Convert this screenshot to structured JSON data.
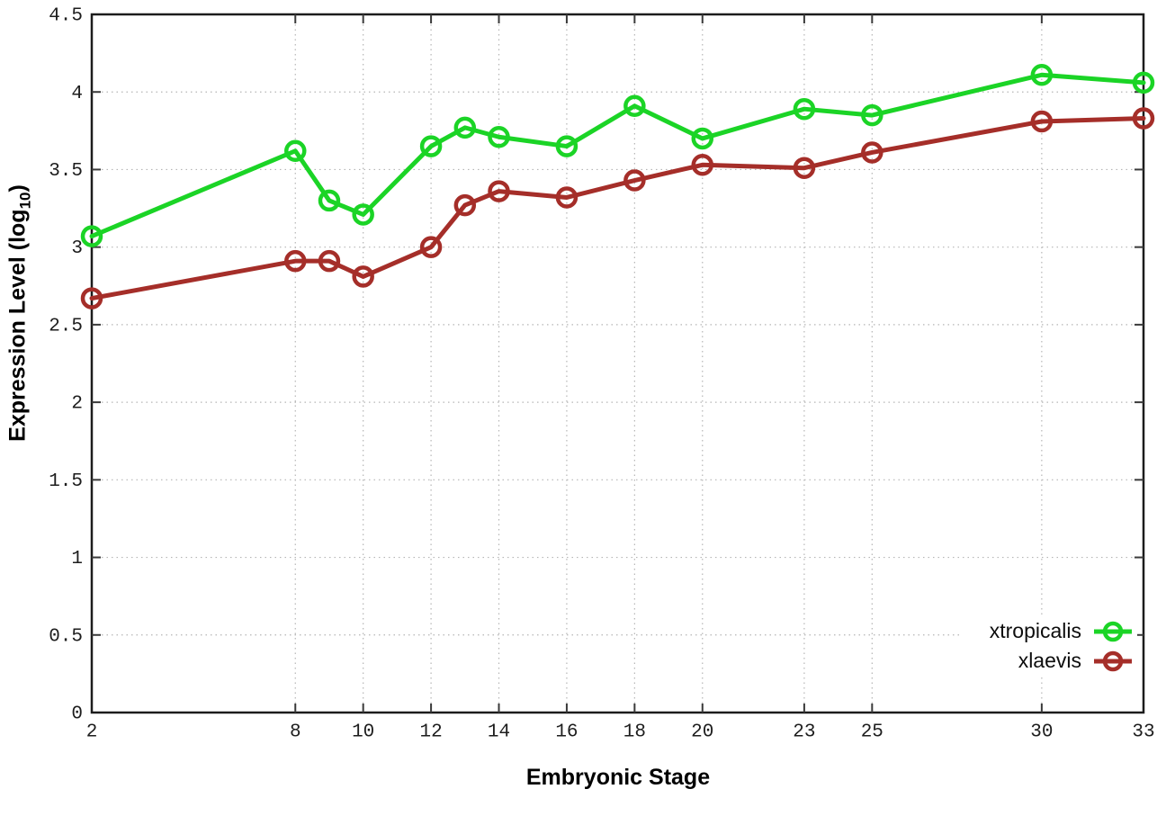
{
  "chart_data": {
    "type": "line",
    "title": "",
    "xlabel": "Embryonic Stage",
    "ylabel": "Expression Level (log10)",
    "ylabel_parts": {
      "prefix": "Expression Level (log",
      "sub": "10",
      "suffix": ")"
    },
    "xlim": [
      2,
      33
    ],
    "ylim": [
      0,
      4.5
    ],
    "x_ticks": [
      2,
      8,
      10,
      12,
      14,
      16,
      18,
      20,
      23,
      25,
      30,
      33
    ],
    "x_tick_labels": [
      "2",
      "8",
      "10",
      "12",
      "14",
      "16",
      "18",
      "20",
      "23",
      "25",
      "30",
      "33"
    ],
    "y_ticks": [
      0,
      0.5,
      1,
      1.5,
      2,
      2.5,
      3,
      3.5,
      4,
      4.5
    ],
    "y_tick_labels": [
      "0",
      "0.5",
      "1",
      "1.5",
      "2",
      "2.5",
      "3",
      "3.5",
      "4",
      "4.5"
    ],
    "grid": true,
    "legend_position": "inside-bottom-right",
    "x": [
      2,
      8,
      9,
      10,
      12,
      13,
      14,
      16,
      18,
      20,
      23,
      25,
      30,
      33
    ],
    "series": [
      {
        "name": "xtropicalis",
        "color": "#1bd426",
        "values": [
          3.07,
          3.62,
          3.3,
          3.21,
          3.65,
          3.77,
          3.71,
          3.65,
          3.91,
          3.7,
          3.89,
          3.85,
          4.11,
          4.06
        ]
      },
      {
        "name": "xlaevis",
        "color": "#a52e29",
        "values": [
          2.67,
          2.91,
          2.91,
          2.81,
          3.0,
          3.27,
          3.36,
          3.32,
          3.43,
          3.53,
          3.51,
          3.61,
          3.81,
          3.83
        ]
      }
    ],
    "style_colors": {
      "border": "#1c1c1c",
      "grid": "#b5b5b5",
      "tick": "#3a3a3a",
      "tick_text": "#1d1d1d"
    }
  }
}
